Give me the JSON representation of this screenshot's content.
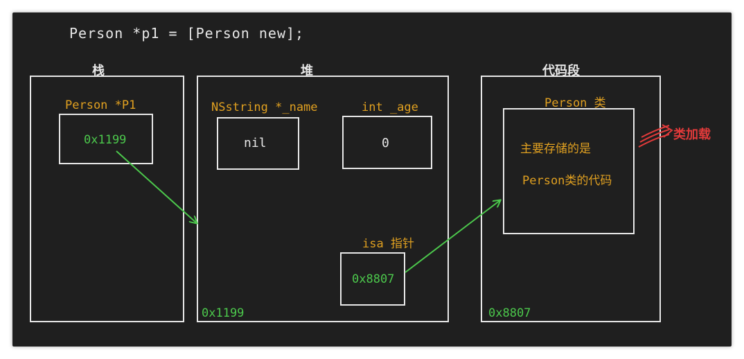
{
  "code_line": "Person  *p1 = [Person  new];",
  "stack": {
    "title": "栈",
    "var_label": "Person    *P1",
    "var_value": "0x1199"
  },
  "heap": {
    "title": "堆",
    "name_label": "NSstring  *_name",
    "name_value": "nil",
    "age_label": "int  _age",
    "age_value": "0",
    "isa_label": "isa 指针",
    "isa_value": "0x8807",
    "address": "0x1199"
  },
  "code_segment": {
    "title": "代码段",
    "class_label": "Person 类",
    "desc_line1": "主要存储的是",
    "desc_line2": "Person类的代码",
    "address": "0x8807",
    "side_note": "类加载"
  },
  "colors": {
    "background": "#1f1f1f",
    "line": "#e8e8e8",
    "label_orange": "#e0a020",
    "value_green": "#4cc84c",
    "note_red": "#e03a3a"
  }
}
